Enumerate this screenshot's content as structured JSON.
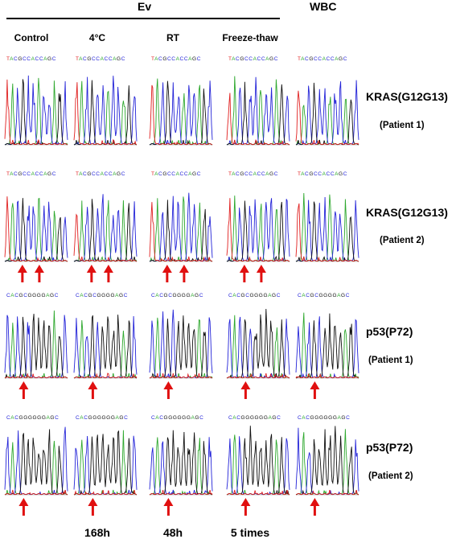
{
  "header": {
    "group_label": "Ev",
    "wbc_label": "WBC"
  },
  "columns": [
    "Control",
    "4°C",
    "RT",
    "Freeze-thaw"
  ],
  "bottom_labels": [
    "168h",
    "48h",
    "5 times"
  ],
  "rows": [
    {
      "gene": "KRAS(G12G13)",
      "patient": "(Patient 1)",
      "sequence": "TACGCCACCAGC",
      "arrows": 0
    },
    {
      "gene": "KRAS(G12G13)",
      "patient": "(Patient 2)",
      "sequence": "TACGCCACCAGC",
      "arrows": 2
    },
    {
      "gene": "p53(P72)",
      "patient": "(Patient 1)",
      "sequence": "CACGCGGGGAGC",
      "arrows": 1
    },
    {
      "gene": "p53(P72)",
      "patient": "(Patient 2)",
      "sequence": "CACGGGGGGAGC",
      "arrows": 1
    }
  ],
  "colors": {
    "A": "#2ea82e",
    "C": "#2424d8",
    "G": "#111111",
    "T": "#e02020",
    "arrow": "#e01010"
  }
}
